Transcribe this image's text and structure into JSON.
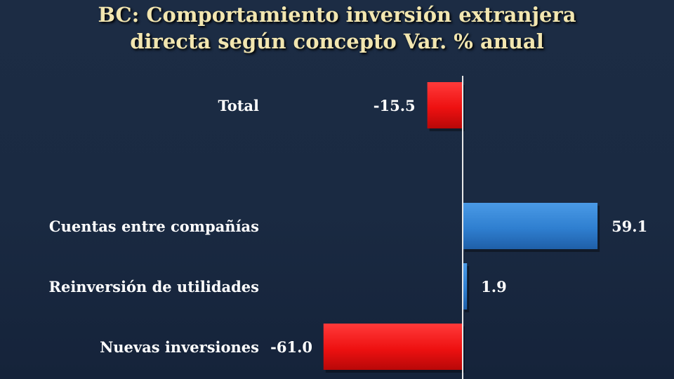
{
  "title_line1": "BC: Comportamiento inversión extranjera",
  "title_line2": "directa según concepto Var. % anual",
  "chart_data": {
    "type": "bar",
    "orientation": "horizontal",
    "title": "BC: Comportamiento inversión extranjera directa según concepto Var. % anual",
    "categories": [
      "Total",
      "Cuentas entre compañías",
      "Reinversión de utilidades",
      "Nuevas inversiones"
    ],
    "values": [
      -15.5,
      59.1,
      1.9,
      -61.0
    ],
    "value_labels": [
      "-15.5",
      "59.1",
      "1.9",
      "-61.0"
    ],
    "positive_color": "#2f7fd0",
    "negative_color": "#ee1111",
    "xlabel": "",
    "ylabel": "",
    "grid": false,
    "legend": "none"
  }
}
